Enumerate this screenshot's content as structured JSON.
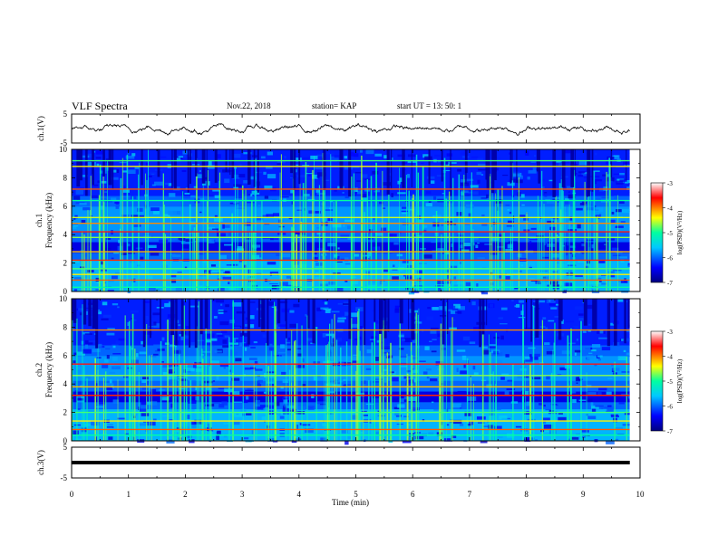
{
  "header": {
    "title": "VLF Spectra",
    "date": "Nov.22, 2018",
    "station": "station= KAP",
    "start": "start  UT =   13: 50: 1"
  },
  "chart_data": [
    {
      "type": "line",
      "panel": "ch.1 waveform",
      "ylabel": "ch.1(V)",
      "ylim": [
        -5,
        5
      ],
      "yticks": [
        "5",
        "-5"
      ],
      "x_range_min": [
        0,
        9.82
      ],
      "description_series": "noisy low-frequency voltage trace around 0 V, amplitude about ±2 V"
    },
    {
      "type": "heatmap",
      "panel": "ch.1 spectrogram",
      "ylabel": "ch.1\nFrequency (kHz)",
      "ylabel_lines": [
        "ch.1",
        "Frequency  (kHz)"
      ],
      "ylim": [
        0,
        10
      ],
      "yticks": [
        "0",
        "2",
        "4",
        "6",
        "8",
        "10"
      ],
      "colorbar": {
        "label": "log(PSD)(V²/Hz)",
        "range": [
          -7,
          -3
        ],
        "ticks": [
          "-3",
          "-4",
          "-5",
          "-6",
          "-7"
        ],
        "colors": [
          "#00007f",
          "#0000ff",
          "#00c8ff",
          "#00ffa0",
          "#ffff00",
          "#ff0000",
          "#ffffff"
        ]
      },
      "bright_lines_khz": [
        0.3,
        0.8,
        1.2,
        1.6,
        2.2,
        2.8,
        3.8,
        4.2,
        4.8,
        5.2,
        6.4,
        7.2,
        8.8,
        9.2
      ]
    },
    {
      "type": "heatmap",
      "panel": "ch.2 spectrogram",
      "ylabel_lines": [
        "ch.2",
        "Frequency  (kHz)"
      ],
      "ylim": [
        0,
        10
      ],
      "yticks": [
        "0",
        "2",
        "4",
        "6",
        "8",
        "10"
      ],
      "colorbar": {
        "label": "log(PSD)(V²/Hz)",
        "range": [
          -7,
          -3
        ],
        "ticks": [
          "-3",
          "-4",
          "-5",
          "-6",
          "-7"
        ]
      },
      "bright_lines_khz": [
        0.4,
        0.8,
        1.4,
        2.0,
        3.2,
        3.8,
        4.6,
        5.4,
        7.8
      ]
    },
    {
      "type": "line",
      "panel": "ch.3 waveform",
      "ylabel": "ch.3(V)",
      "ylim": [
        -5,
        5
      ],
      "yticks": [
        "5",
        "-5"
      ],
      "series": [
        {
          "values_const": 0
        }
      ]
    }
  ],
  "xaxis": {
    "label": "Time  (min)",
    "ticks": [
      "0",
      "1",
      "2",
      "3",
      "4",
      "5",
      "6",
      "7",
      "8",
      "9",
      "10"
    ],
    "range": [
      0,
      10
    ]
  }
}
